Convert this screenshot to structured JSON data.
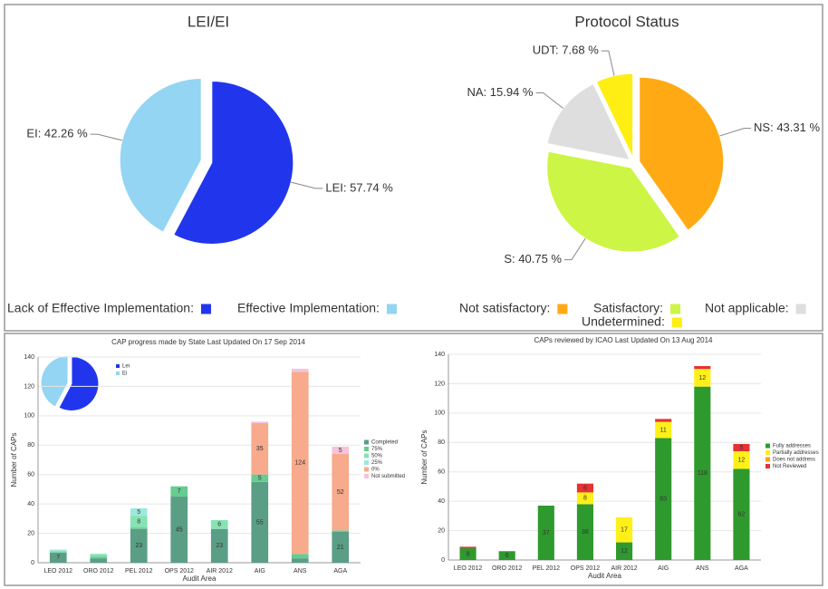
{
  "chart_data": [
    {
      "type": "pie",
      "title": "LEI/EI",
      "categories": [
        "LEI",
        "EI"
      ],
      "values": [
        57.74,
        42.26
      ],
      "value_labels": [
        "LEI: 57.74 %",
        "EI: 42.26 %"
      ],
      "colors": [
        "#2136ec",
        "#93d5f2"
      ],
      "legend": [
        "Lack of Effective Implementation:",
        "Effective Implementation:"
      ]
    },
    {
      "type": "pie",
      "title": "Protocol Status",
      "categories": [
        "NS",
        "S",
        "NA",
        "UDT"
      ],
      "values": [
        43.31,
        40.75,
        15.94,
        7.68
      ],
      "value_labels": [
        "NS: 43.31 %",
        "S: 40.75 %",
        "NA: 15.94 %",
        "UDT: 7.68 %"
      ],
      "colors": [
        "#ffaa14",
        "#ccf545",
        "#dedede",
        "#ffee14"
      ],
      "legend": [
        "Not satisfactory:",
        "Satisfactory:",
        "Not applicable:",
        "Undetermined:"
      ]
    },
    {
      "type": "pie",
      "categories": [
        "Lei",
        "Ei"
      ],
      "values": [
        57.74,
        42.26
      ],
      "colors": [
        "#2136ec",
        "#93d5f2"
      ],
      "legend": [
        "Lei",
        "Ei"
      ]
    },
    {
      "type": "bar",
      "title": "CAP progress made by State Last Updated On 17 Sep 2014",
      "ylabel": "Number of CAPs",
      "xlabel": "Audit Area",
      "categories": [
        "LEO 2012",
        "ORO 2012",
        "PEL 2012",
        "OPS 2012",
        "AIR 2012",
        "AIG",
        "ANS",
        "AGA"
      ],
      "series": [
        {
          "name": "Completed",
          "color": "#5a9e86",
          "values": [
            7,
            3,
            23,
            45,
            23,
            55,
            3,
            21
          ]
        },
        {
          "name": "75%",
          "color": "#66cc90",
          "values": [
            0,
            1,
            1,
            7,
            0,
            5,
            3,
            1
          ]
        },
        {
          "name": "50%",
          "color": "#86e3b2",
          "values": [
            1,
            2,
            8,
            0,
            6,
            0,
            0,
            0
          ]
        },
        {
          "name": "25%",
          "color": "#9ee8e0",
          "values": [
            1,
            0,
            5,
            0,
            0,
            0,
            0,
            0
          ]
        },
        {
          "name": "0%",
          "color": "#f7aa8c",
          "values": [
            0,
            0,
            0,
            0,
            0,
            35,
            124,
            52
          ]
        },
        {
          "name": "Not submitted",
          "color": "#f5c3dc",
          "values": [
            0,
            0,
            0,
            0,
            0,
            1,
            2,
            5
          ]
        }
      ],
      "ylim": [
        0,
        140
      ],
      "yticks": [
        0,
        20,
        40,
        60,
        80,
        100,
        120,
        140
      ],
      "grid": true
    },
    {
      "type": "bar",
      "title": "CAPs reviewed by ICAO Last Updated On 13 Aug 2014",
      "ylabel": "Number of CAPs",
      "xlabel": "Audit Area",
      "categories": [
        "LEO 2012",
        "ORO 2012",
        "PEL 2012",
        "OPS 2012",
        "AIR 2012",
        "AIG",
        "ANS",
        "AGA"
      ],
      "series": [
        {
          "name": "Fully addresses",
          "color": "#2e9a2e",
          "values": [
            8,
            6,
            37,
            38,
            12,
            83,
            118,
            62
          ]
        },
        {
          "name": "Partially addresses",
          "color": "#fff01a",
          "values": [
            0,
            0,
            0,
            8,
            17,
            11,
            12,
            12
          ]
        },
        {
          "name": "Does not address",
          "color": "#ff9c1a",
          "values": [
            0,
            0,
            0,
            0,
            0,
            0,
            0,
            0
          ]
        },
        {
          "name": "Not Reviewed",
          "color": "#e63232",
          "values": [
            1,
            0,
            0,
            6,
            0,
            2,
            2,
            5
          ]
        }
      ],
      "ylim": [
        0,
        140
      ],
      "yticks": [
        0,
        20,
        40,
        60,
        80,
        100,
        120,
        140
      ],
      "grid": true
    }
  ]
}
